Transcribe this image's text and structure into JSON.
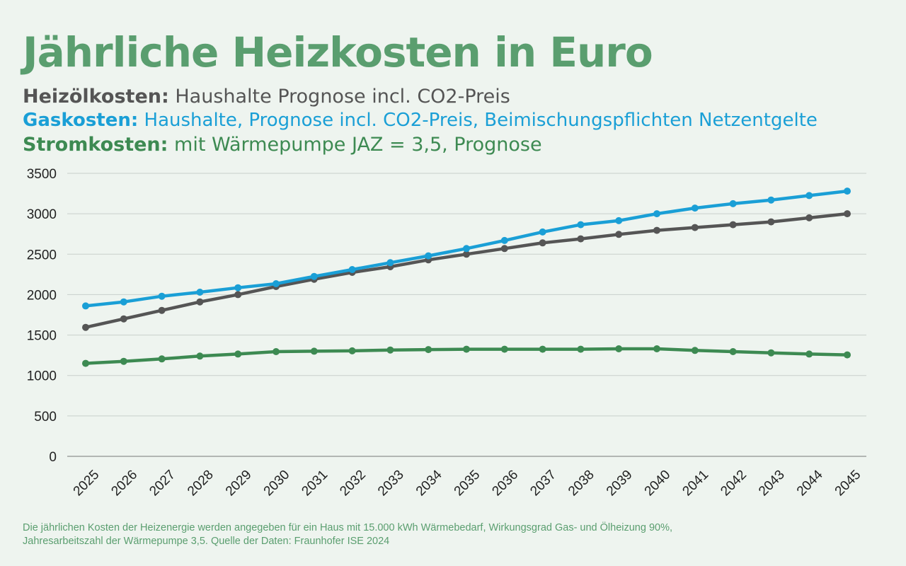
{
  "title": "Jährliche Heizkosten in Euro",
  "legend": {
    "oil": {
      "label": "Heizölkosten:",
      "desc": "Haushalte Prognose incl. CO2-Preis"
    },
    "gas": {
      "label": "Gaskosten:",
      "desc": "Haushalte, Prognose incl. CO2-Preis, Beimischungspflichten Netzentgelte"
    },
    "power": {
      "label": "Stromkosten:",
      "desc": "mit Wärmepumpe JAZ = 3,5, Prognose"
    }
  },
  "footnote": {
    "line1": "Die jährlichen Kosten der Heizenergie werden angegeben für ein Haus mit 15.000 kWh Wärmebedarf, Wirkungsgrad Gas- und Ölheizung 90%,",
    "line2": "Jahresarbeitszahl der Wärmepumpe 3,5.  Quelle der Daten: Fraunhofer ISE 2024"
  },
  "colors": {
    "oil": "#555555",
    "gas": "#1a9fd6",
    "power": "#3d8a52",
    "grid": "#c8cfcb",
    "axis_text": "#222222"
  },
  "chart_data": {
    "type": "line",
    "title": "Jährliche Heizkosten in Euro",
    "xlabel": "",
    "ylabel": "",
    "ylim": [
      0,
      3500
    ],
    "yticks": [
      0,
      500,
      1000,
      1500,
      2000,
      2500,
      3000,
      3500
    ],
    "grid": true,
    "legend_position": "top",
    "x": [
      "2025",
      "2026",
      "2027",
      "2028",
      "2029",
      "2030",
      "2031",
      "2032",
      "2033",
      "2034",
      "2035",
      "2036",
      "2037",
      "2038",
      "2039",
      "2040",
      "2041",
      "2042",
      "2043",
      "2044",
      "2045"
    ],
    "series": [
      {
        "name": "Heizölkosten",
        "color": "#555555",
        "values": [
          1595,
          1700,
          1805,
          1910,
          2000,
          2100,
          2190,
          2275,
          2345,
          2430,
          2500,
          2570,
          2640,
          2690,
          2745,
          2795,
          2830,
          2865,
          2900,
          2950,
          3000
        ]
      },
      {
        "name": "Gaskosten",
        "color": "#1a9fd6",
        "values": [
          1860,
          1910,
          1980,
          2030,
          2085,
          2135,
          2225,
          2310,
          2395,
          2480,
          2570,
          2670,
          2775,
          2865,
          2915,
          3000,
          3070,
          3125,
          3170,
          3225,
          3280
        ]
      },
      {
        "name": "Stromkosten",
        "color": "#3d8a52",
        "values": [
          1150,
          1175,
          1205,
          1240,
          1265,
          1295,
          1300,
          1305,
          1315,
          1320,
          1325,
          1325,
          1325,
          1325,
          1330,
          1330,
          1310,
          1295,
          1280,
          1265,
          1255
        ]
      }
    ]
  }
}
